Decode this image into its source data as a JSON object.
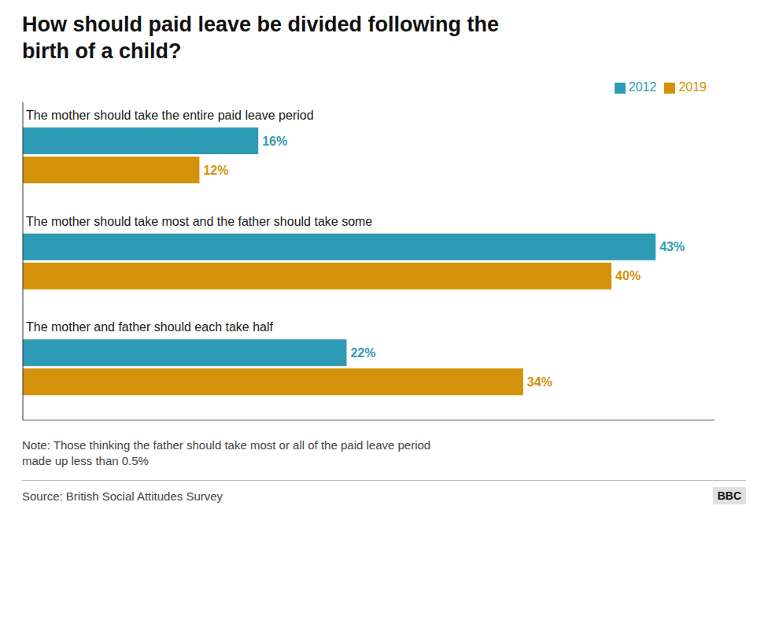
{
  "chart_data": {
    "type": "bar",
    "orientation": "horizontal",
    "title": "How should paid leave be divided following the\nbirth of a child?",
    "categories": [
      "The mother should take the entire paid leave period",
      "The mother should take most and the father should take some",
      "The mother and father should each take half"
    ],
    "series": [
      {
        "name": "2012",
        "color": "#2E9BB5",
        "values": [
          16,
          43,
          22
        ],
        "value_labels": [
          "16%",
          "43%",
          "22%"
        ]
      },
      {
        "name": "2019",
        "color": "#D4920A",
        "values": [
          12,
          40,
          34
        ],
        "value_labels": [
          "12%",
          "40%",
          "34%"
        ]
      }
    ],
    "xlim": [
      0,
      47
    ],
    "data_labels": true,
    "tick_labels": false,
    "grid": false,
    "legend": "upper right",
    "annotations": [
      "Note: Those thinking the father should take most or all of the paid leave period\nmade up less than 0.5%",
      "Source: British Social Attitudes Survey",
      "BBC"
    ]
  }
}
